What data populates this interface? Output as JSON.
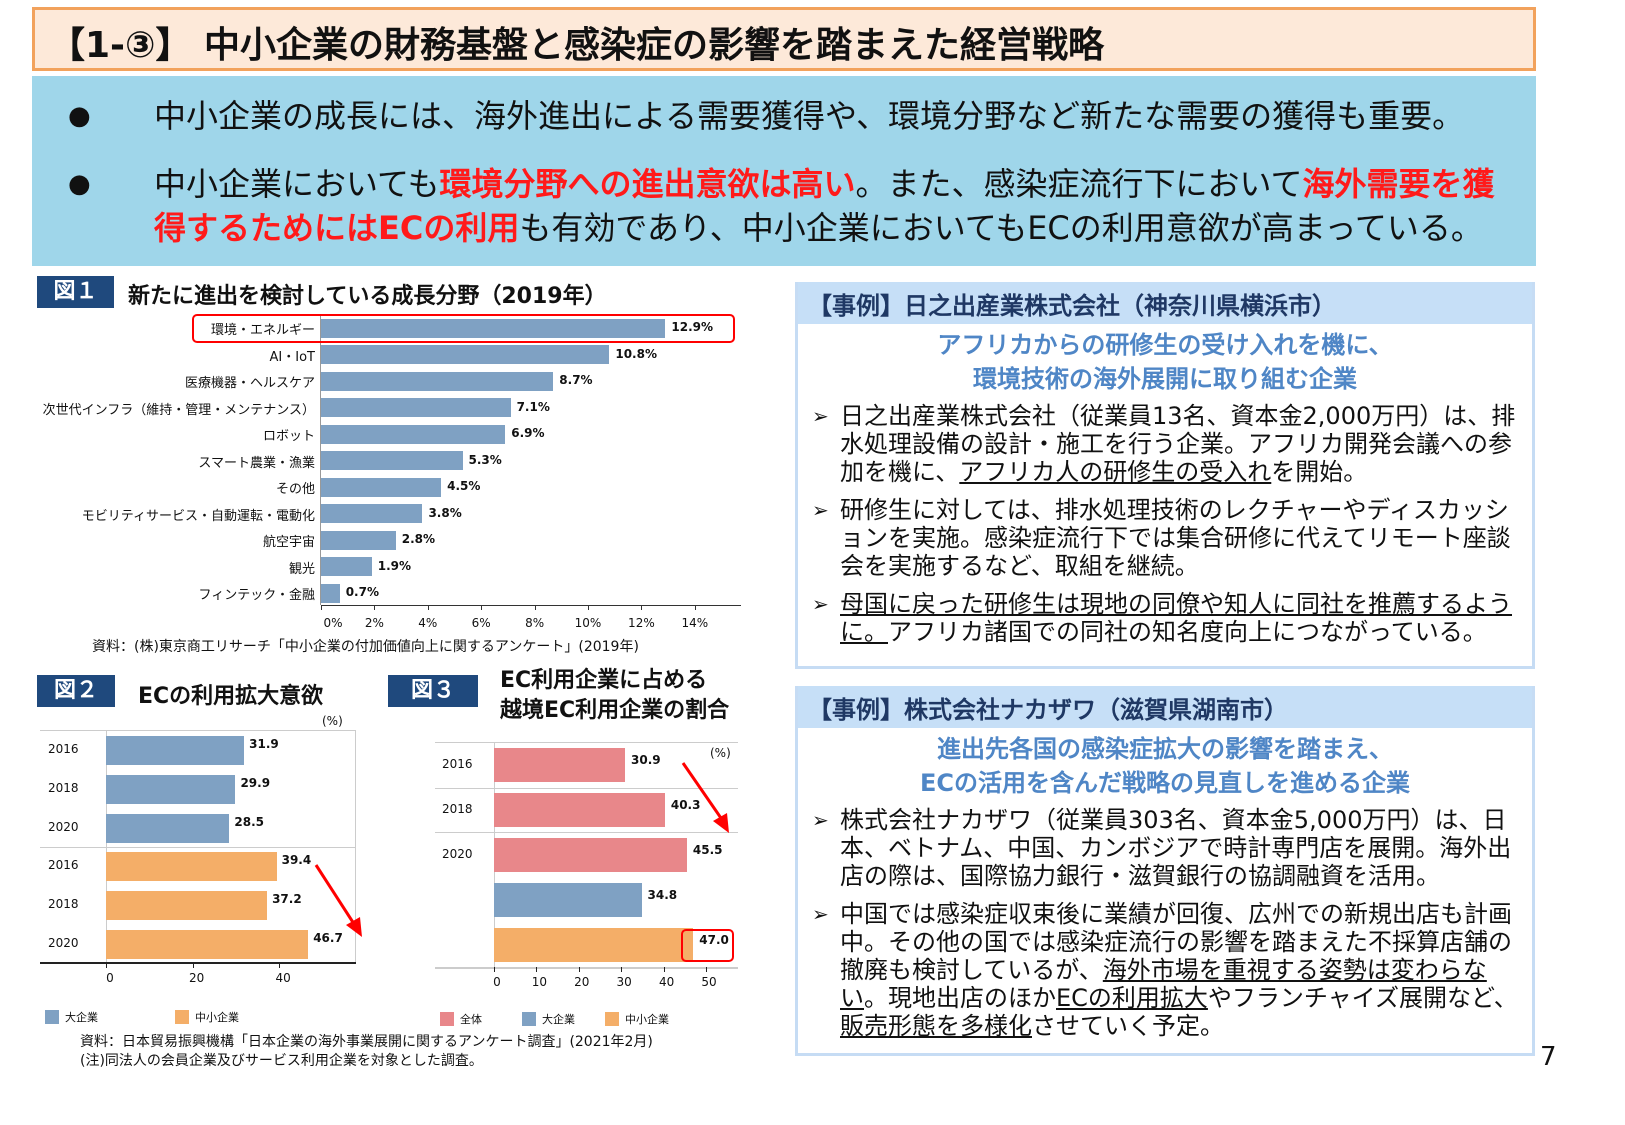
{
  "header": {
    "title": "【1-③】 中小企業の財務基盤と感染症の影響を踏まえた経営戦略"
  },
  "summary": {
    "bullet1": "中小企業の成長には、海外進出による需要獲得や、環境分野など新たな需要の獲得も重要。",
    "bullet2_parts": [
      "中小企業においても",
      "環境分野への進出意欲は高い",
      "。また、感染症流行下において",
      "海外需要を獲得するためにはECの利用",
      "も有効であり、中小企業においてもECの利用意欲が高まっている。"
    ]
  },
  "colors": {
    "blue_bar": "#7fa1c3",
    "orange_bar": "#f4ae68",
    "pink_bar": "#e8878a",
    "highlight": "#ff0000",
    "fig_label": "#1f497d",
    "emphasis_text": "#ff1a1a"
  },
  "fig1": {
    "label": "図１",
    "title": "新たに進出を検討している成長分野（2019年）",
    "source": "資料：(株)東京商工リサーチ「中小企業の付加価値向上に関するアンケート」(2019年)"
  },
  "fig2": {
    "label": "図２",
    "title": "ECの利用拡大意欲",
    "unit": "(%)"
  },
  "fig3": {
    "label": "図３",
    "title_line1": "EC利用企業に占める",
    "title_line2": "越境EC利用企業の割合",
    "unit": "(%)"
  },
  "footer_source": {
    "line1": "資料：日本貿易振興機構「日本企業の海外事業展開に関するアンケート調査」(2021年2月)",
    "line2": "(注)同法人の会員企業及びサービス利用企業を対象とした調査。"
  },
  "chart_data": [
    {
      "type": "bar",
      "orientation": "horizontal",
      "categories": [
        "環境・エネルギー",
        "AI・IoT",
        "医療機器・ヘルスケア",
        "次世代インフラ（維持・管理・メンテナンス）",
        "ロボット",
        "スマート農業・漁業",
        "その他",
        "モビリティサービス・自動運転・電動化",
        "航空宇宙",
        "観光",
        "フィンテック・金融"
      ],
      "values": [
        12.9,
        10.8,
        8.7,
        7.1,
        6.9,
        5.3,
        4.5,
        3.8,
        2.8,
        1.9,
        0.7
      ],
      "value_labels": [
        "12.9%",
        "10.8%",
        "8.7%",
        "7.1%",
        "6.9%",
        "5.3%",
        "4.5%",
        "3.8%",
        "2.8%",
        "1.9%",
        "0.7%"
      ],
      "xlim": [
        0,
        14
      ],
      "xticks": [
        "0%",
        "2%",
        "4%",
        "6%",
        "8%",
        "10%",
        "12%",
        "14%"
      ],
      "highlighted": "環境・エネルギー"
    },
    {
      "type": "bar",
      "orientation": "horizontal",
      "categories": [
        "2016",
        "2018",
        "2020",
        "2016",
        "2018",
        "2020"
      ],
      "series": [
        {
          "name": "大企業",
          "values": [
            31.9,
            29.9,
            28.5,
            null,
            null,
            null
          ]
        },
        {
          "name": "中小企業",
          "values": [
            null,
            null,
            null,
            39.4,
            37.2,
            46.7
          ]
        }
      ],
      "xlim": [
        0,
        57
      ],
      "xticks": [
        "0",
        "20",
        "40"
      ],
      "annotation": "downward red arrow"
    },
    {
      "type": "bar",
      "orientation": "horizontal",
      "categories": [
        "2016",
        "2018",
        "2020"
      ],
      "bars": [
        {
          "year": "2016",
          "series": "全体",
          "value": 30.9
        },
        {
          "year": "2018",
          "series": "全体",
          "value": 40.3
        },
        {
          "year": "2020",
          "series": "全体",
          "value": 45.5
        },
        {
          "year": "2020",
          "series": "大企業",
          "value": 34.8
        },
        {
          "year": "2020",
          "series": "中小企業",
          "value": 47.0,
          "label": "47.0",
          "highlighted": true
        }
      ],
      "legend": [
        "全体",
        "大企業",
        "中小企業"
      ],
      "xlim": [
        0,
        57
      ],
      "xticks": [
        "0",
        "10",
        "20",
        "30",
        "40",
        "50"
      ]
    }
  ],
  "case1": {
    "header": "【事例】日之出産業株式会社（神奈川県横浜市）",
    "subtitle1": "アフリカからの研修生の受け入れを機に、",
    "subtitle2": "環境技術の海外展開に取り組む企業",
    "items": [
      {
        "a": "日之出産業株式会社（従業員13名、資本金2,000万円）は、排水処理設備の設計・施工を行う企業。アフリカ開発会議への参加を機に、",
        "u": "アフリカ人の研修生の受入れ",
        "b": "を開始。"
      },
      {
        "a": "研修生に対しては、排水処理技術のレクチャーやディスカッションを実施。感染症流行下では集合研修に代えてリモート座談会を実施するなど、取組を継続。",
        "u": "",
        "b": ""
      },
      {
        "a": "",
        "u": "母国に戻った研修生は現地の同僚や知人に同社を推薦するように。",
        "b": "アフリカ諸国での同社の知名度向上につながっている。"
      }
    ]
  },
  "case2": {
    "header": "【事例】株式会社ナカザワ（滋賀県湖南市）",
    "subtitle1": "進出先各国の感染症拡大の影響を踏まえ、",
    "subtitle2": "ECの活用を含んだ戦略の見直しを進める企業",
    "item1": "株式会社ナカザワ（従業員303名、資本金5,000万円）は、日本、ベトナム、中国、カンボジアで時計専門店を展開。海外出店の際は、国際協力銀行・滋賀銀行の協調融資を活用。",
    "item2_parts": [
      "中国では感染症収束後に業績が回復、広州での新規出店も計画中。その他の国では感染症流行の影響を踏まえた不採算店舗の撤廃も検討しているが、",
      "海外市場を重視する姿勢は変わらない",
      "。現地出店のほか",
      "ECの利用拡大",
      "やフランチャイズ展開など、",
      "販売形態を多様化",
      "させていく予定。"
    ]
  },
  "page_number": "7"
}
